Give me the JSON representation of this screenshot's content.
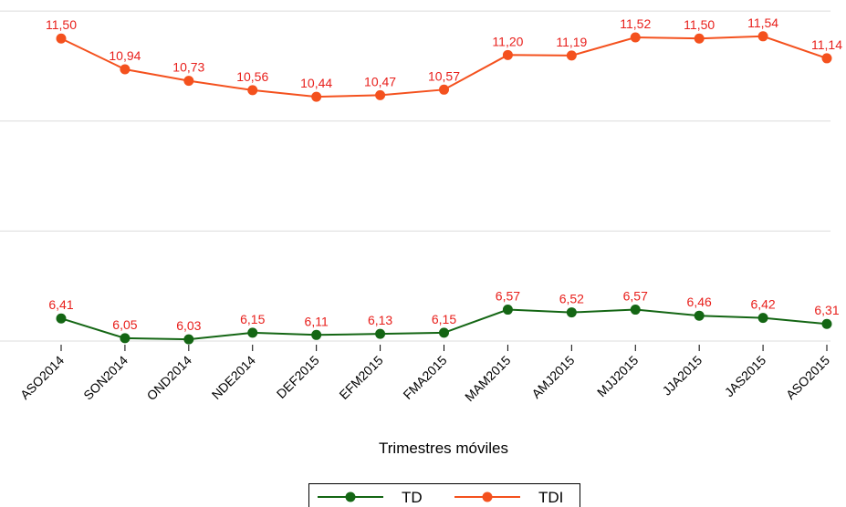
{
  "chart_data": {
    "type": "line",
    "x_label": "Trimestres móviles",
    "categories": [
      "ASO2014",
      "SON2014",
      "OND2014",
      "NDE2014",
      "DEF2015",
      "EFM2015",
      "FMA2015",
      "MAM2015",
      "AMJ2015",
      "MJJ2015",
      "JJA2015",
      "JAS2015",
      "ASO2015"
    ],
    "series": [
      {
        "name": "TD",
        "color": "#146614",
        "values": [
          6.41,
          6.05,
          6.03,
          6.15,
          6.11,
          6.13,
          6.15,
          6.57,
          6.52,
          6.57,
          6.46,
          6.42,
          6.31
        ],
        "value_labels": [
          "6,41",
          "6,05",
          "6,03",
          "6,15",
          "6,11",
          "6,13",
          "6,15",
          "6,57",
          "6,52",
          "6,57",
          "6,46",
          "6,42",
          "6,31"
        ]
      },
      {
        "name": "TDI",
        "color": "#f4511e",
        "values": [
          11.5,
          10.94,
          10.73,
          10.56,
          10.44,
          10.47,
          10.57,
          11.2,
          11.19,
          11.52,
          11.5,
          11.54,
          11.14
        ],
        "value_labels": [
          "11,50",
          "10,94",
          "10,73",
          "10,56",
          "10,44",
          "10,47",
          "10,57",
          "11,20",
          "11,19",
          "11,52",
          "11,50",
          "11,54",
          "11,14"
        ]
      }
    ],
    "value_label_color": "#e8201c",
    "ylim": [
      5.8,
      12.2
    ],
    "yticks": [
      6,
      8,
      10,
      12
    ],
    "grid": true,
    "legend": "bottom"
  }
}
